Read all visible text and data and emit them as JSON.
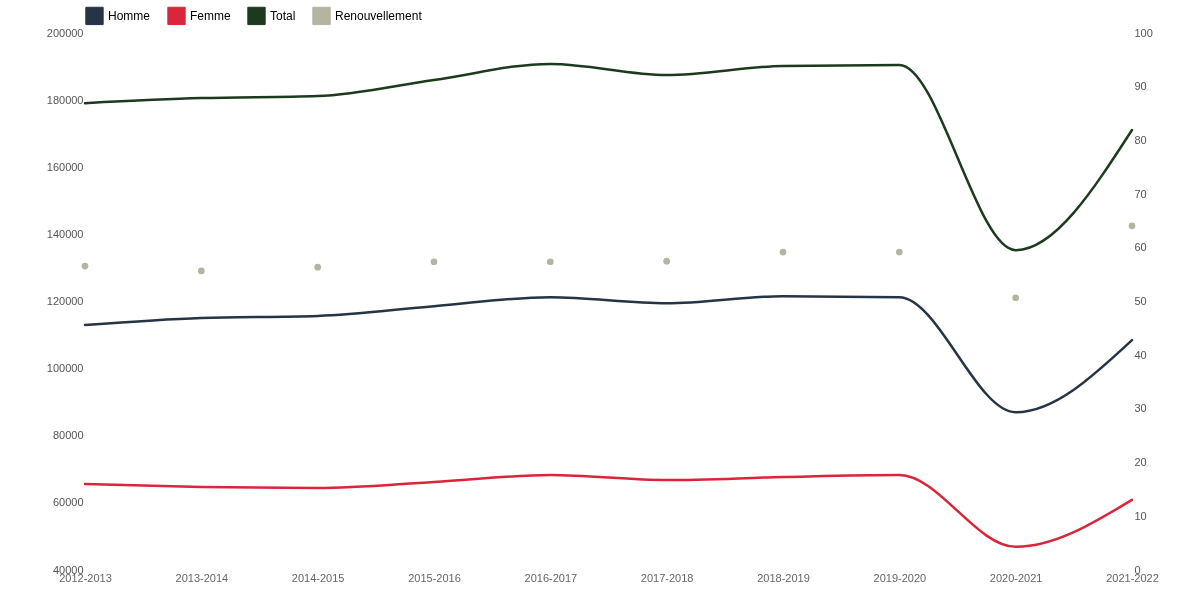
{
  "chart_data": {
    "type": "line",
    "categories": [
      "2012-2013",
      "2013-2014",
      "2014-2015",
      "2015-2016",
      "2016-2017",
      "2017-2018",
      "2018-2019",
      "2019-2020",
      "2020-2021",
      "2021-2022"
    ],
    "series": [
      {
        "name": "Homme",
        "color": "#263445",
        "values": [
          113000,
          115100,
          115700,
          118600,
          121300,
          119500,
          121600,
          121300,
          87000,
          108500
        ]
      },
      {
        "name": "Femme",
        "color": "#d9263a",
        "values": [
          65600,
          64700,
          64400,
          66200,
          68300,
          66800,
          67700,
          68300,
          46900,
          60900
        ]
      },
      {
        "name": "Total",
        "color": "#1e3a1e",
        "values": [
          179100,
          180600,
          181200,
          186000,
          190800,
          187500,
          190200,
          190500,
          135300,
          171100
        ]
      },
      {
        "name": "Renouvellement",
        "color": "#b4b4a0",
        "type": "scatter",
        "axis": "y2",
        "values": [
          56.6,
          55.7,
          56.4,
          57.4,
          57.4,
          57.5,
          59.2,
          59.2,
          50.7,
          64.1
        ]
      }
    ],
    "ylim": [
      40000,
      200000
    ],
    "yticks": [
      40000,
      60000,
      80000,
      100000,
      120000,
      140000,
      160000,
      180000,
      200000
    ],
    "y2lim": [
      0,
      100
    ],
    "y2ticks": [
      0,
      10,
      20,
      30,
      40,
      50,
      60,
      70,
      80,
      90,
      100
    ],
    "grid": false,
    "legend": "top"
  }
}
